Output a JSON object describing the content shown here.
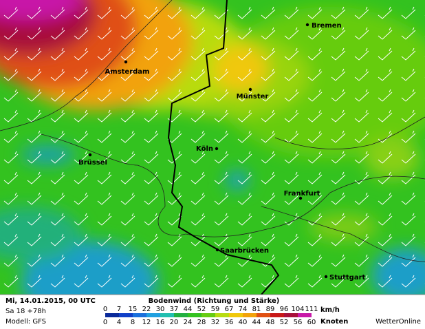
{
  "map": {
    "cities": [
      {
        "name": "Bremen"
      },
      {
        "name": "Amsterdam"
      },
      {
        "name": "Münster"
      },
      {
        "name": "Köln"
      },
      {
        "name": "Brüssel"
      },
      {
        "name": "Frankfurt"
      },
      {
        "name": "Saarbrücken"
      },
      {
        "name": "Stuttgart"
      }
    ]
  },
  "footer": {
    "date": "Mi, 14.01.2015, 00 UTC",
    "run": "Sa 18 +78h",
    "model": "Modell: GFS",
    "title": "Bodenwind (Richtung und Stärke)",
    "kmh_ticks": [
      0,
      7,
      15,
      22,
      30,
      37,
      44,
      52,
      59,
      67,
      74,
      81,
      89,
      96,
      104,
      111
    ],
    "kmh_unit": "km/h",
    "knots_ticks": [
      0,
      4,
      8,
      12,
      16,
      20,
      24,
      28,
      32,
      36,
      40,
      44,
      48,
      52,
      56,
      60
    ],
    "knots_unit": "Knoten",
    "brand": "WetterOnline"
  }
}
